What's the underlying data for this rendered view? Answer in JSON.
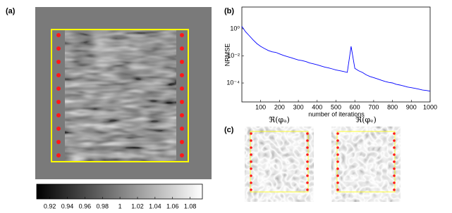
{
  "panels": {
    "a": "(a)",
    "b": "(b)",
    "c": "(c)"
  },
  "images": [
    {
      "title": "ℜ(φₐ)"
    },
    {
      "title": "ℜ(φₑ)"
    }
  ],
  "chart_data": [
    {
      "type": "colorbar",
      "xlim": [
        0.905,
        1.094
      ],
      "xticks": [
        0.92,
        0.94,
        0.96,
        0.98,
        1,
        1.02,
        1.04,
        1.06,
        1.08
      ]
    },
    {
      "type": "line",
      "xlabel": "number of iterations",
      "ylabel": "NRMSE",
      "log_y": true,
      "xlim": [
        0,
        1000
      ],
      "ylim": [
        4e-06,
        40
      ],
      "xticks": [
        100,
        200,
        300,
        400,
        500,
        600,
        700,
        800,
        900,
        1000
      ],
      "yticks": [
        {
          "value": 1,
          "label": "10⁰"
        },
        {
          "value": 0.01,
          "label": "10⁻²"
        },
        {
          "value": 0.0001,
          "label": "10⁻⁴"
        }
      ],
      "x": [
        0,
        20,
        40,
        60,
        80,
        100,
        120,
        140,
        160,
        180,
        200,
        220,
        240,
        260,
        280,
        300,
        320,
        340,
        360,
        380,
        400,
        420,
        440,
        460,
        480,
        500,
        520,
        540,
        560,
        580,
        600,
        620,
        640,
        660,
        680,
        700,
        720,
        740,
        760,
        780,
        800,
        820,
        840,
        860,
        880,
        900,
        920,
        940,
        960,
        980,
        1000
      ],
      "series": [
        {
          "color": "#0000ff",
          "values": [
            1.5,
            0.6,
            0.3,
            0.15,
            0.08,
            0.05,
            0.035,
            0.025,
            0.02,
            0.018,
            0.014,
            0.011,
            0.009,
            0.0075,
            0.006,
            0.005,
            0.0045,
            0.0038,
            0.003,
            0.0026,
            0.0022,
            0.0018,
            0.0015,
            0.0013,
            0.0011,
            0.0009,
            0.0008,
            0.0007,
            0.0006,
            0.05,
            0.0012,
            0.0008,
            0.0006,
            0.0004,
            0.0003,
            0.00025,
            0.0002,
            0.00016,
            0.00013,
            0.00011,
            0.0001,
            8e-05,
            7e-05,
            6e-05,
            5e-05,
            4.5e-05,
            4e-05,
            3.5e-05,
            3e-05,
            2.8e-05,
            2.5e-05
          ]
        }
      ]
    }
  ]
}
